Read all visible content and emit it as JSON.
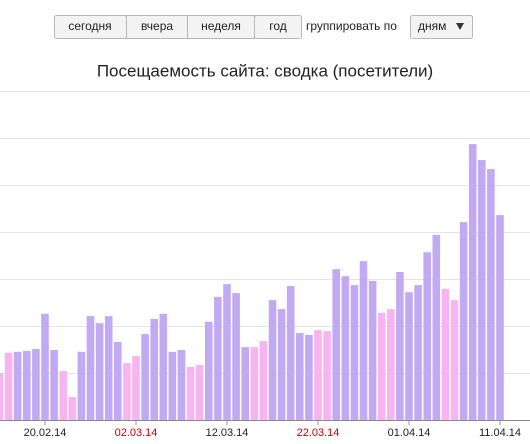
{
  "toolbar": {
    "buttons": [
      "сегодня",
      "вчера",
      "неделя",
      "год"
    ],
    "group_label": "группировать по",
    "group_select": "дням"
  },
  "chart_data": {
    "type": "bar",
    "title": "Посещаемость сайта: сводка (посетители)",
    "categories": [
      null,
      null,
      null,
      null,
      null,
      "20.02.14",
      null,
      null,
      null,
      null,
      null,
      null,
      null,
      null,
      null,
      "02.03.14",
      null,
      null,
      null,
      null,
      null,
      null,
      null,
      null,
      null,
      "12.03.14",
      null,
      null,
      null,
      null,
      null,
      null,
      null,
      null,
      null,
      "22.03.14",
      null,
      null,
      null,
      null,
      null,
      null,
      null,
      null,
      null,
      "01.04.14",
      null,
      null,
      null,
      null,
      null,
      null,
      null,
      null,
      null,
      "11.04.14"
    ],
    "xtick_colors": [
      null,
      null,
      null,
      null,
      null,
      "#222222",
      null,
      null,
      null,
      null,
      null,
      null,
      null,
      null,
      null,
      "#cc0000",
      null,
      null,
      null,
      null,
      null,
      null,
      null,
      null,
      null,
      "#222222",
      null,
      null,
      null,
      null,
      null,
      null,
      null,
      null,
      null,
      "#cc0000",
      null,
      null,
      null,
      null,
      null,
      null,
      null,
      null,
      null,
      "#222222",
      null,
      null,
      null,
      null,
      null,
      null,
      null,
      null,
      null,
      "#222222"
    ],
    "values": [
      1.0,
      1.43,
      1.45,
      1.47,
      1.51,
      2.26,
      1.49,
      1.04,
      0.49,
      1.45,
      2.21,
      2.06,
      2.21,
      1.66,
      1.21,
      1.36,
      1.83,
      2.15,
      2.26,
      1.45,
      1.49,
      1.13,
      1.17,
      2.09,
      2.62,
      2.89,
      2.7,
      1.55,
      1.55,
      1.68,
      2.55,
      2.36,
      2.85,
      1.85,
      1.81,
      1.91,
      1.89,
      3.21,
      3.06,
      2.87,
      3.38,
      2.96,
      2.28,
      2.36,
      3.15,
      2.72,
      2.87,
      3.57,
      3.94,
      2.79,
      2.55,
      4.21,
      5.87,
      5.53,
      5.34,
      4.36
    ],
    "colors": [
      "#f8b4f0",
      "#f8b4f0",
      "#c2aaf2",
      "#c2aaf2",
      "#c2aaf2",
      "#c2aaf2",
      "#c2aaf2",
      "#f8b4f0",
      "#f8b4f0",
      "#c2aaf2",
      "#c2aaf2",
      "#c2aaf2",
      "#c2aaf2",
      "#c2aaf2",
      "#f8b4f0",
      "#f8b4f0",
      "#c2aaf2",
      "#c2aaf2",
      "#c2aaf2",
      "#c2aaf2",
      "#c2aaf2",
      "#f8b4f0",
      "#f8b4f0",
      "#c2aaf2",
      "#c2aaf2",
      "#c2aaf2",
      "#c2aaf2",
      "#c2aaf2",
      "#f8b4f0",
      "#f8b4f0",
      "#c2aaf2",
      "#c2aaf2",
      "#c2aaf2",
      "#c2aaf2",
      "#c2aaf2",
      "#f8b4f0",
      "#f8b4f0",
      "#c2aaf2",
      "#c2aaf2",
      "#c2aaf2",
      "#c2aaf2",
      "#c2aaf2",
      "#f8b4f0",
      "#f8b4f0",
      "#c2aaf2",
      "#c2aaf2",
      "#c2aaf2",
      "#c2aaf2",
      "#c2aaf2",
      "#f8b4f0",
      "#f8b4f0",
      "#c2aaf2",
      "#c2aaf2",
      "#c2aaf2",
      "#c2aaf2",
      "#c2aaf2"
    ],
    "ylim": [
      0,
      7
    ],
    "yticks": [
      1,
      2,
      3,
      4,
      5,
      6,
      7
    ],
    "grid": true
  }
}
